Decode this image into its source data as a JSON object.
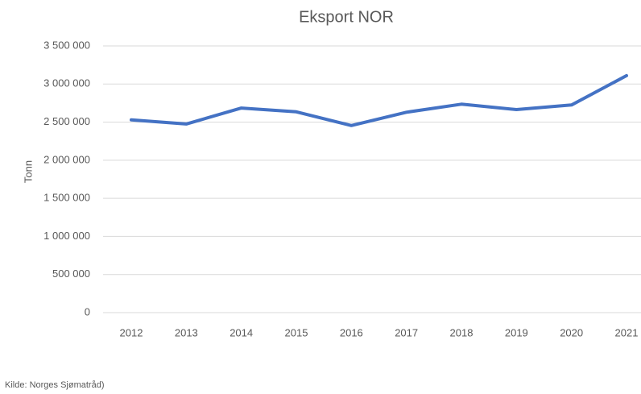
{
  "chart_data": {
    "type": "line",
    "title": "Eksport NOR",
    "y_label": "Tonn",
    "source": "Kilde: Norges Sjømatråd)",
    "categories": [
      "2012",
      "2013",
      "2014",
      "2015",
      "2016",
      "2017",
      "2018",
      "2019",
      "2020",
      "2021"
    ],
    "series": [
      {
        "name": "Eksport NOR",
        "color": "#4472c4",
        "values": [
          2530000,
          2475000,
          2685000,
          2635000,
          2455000,
          2630000,
          2735000,
          2665000,
          2725000,
          3110000
        ]
      }
    ],
    "ylim": [
      0,
      3500000
    ],
    "yticks": [
      0,
      {
        "value": 500000,
        "label": "500 000"
      },
      {
        "value": 1000000,
        "label": "1 000 000"
      },
      {
        "value": 1500000,
        "label": "1 500 000"
      },
      {
        "value": 2000000,
        "label": "2 000 000"
      },
      {
        "value": 2500000,
        "label": "2 500 000"
      },
      {
        "value": 3000000,
        "label": "3 000 000"
      },
      {
        "value": 3500000,
        "label": "3 500 000"
      }
    ],
    "grid": true
  }
}
